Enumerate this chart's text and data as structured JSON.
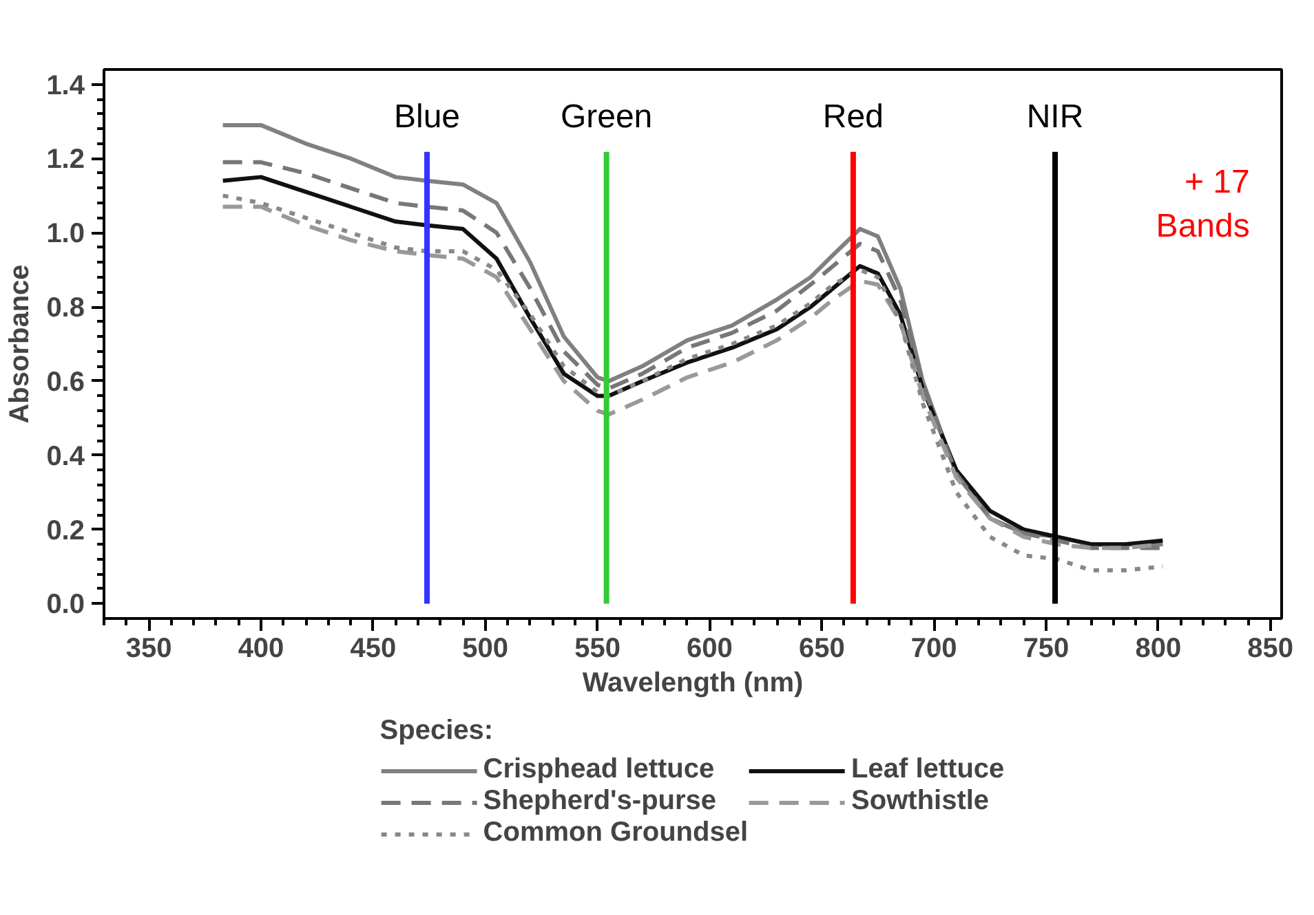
{
  "chart_data": {
    "type": "line",
    "xlabel": "Wavelength (nm)",
    "ylabel": "Absorbance",
    "legend_title": "Species:",
    "legend": "bottom",
    "grid": false,
    "xlim": [
      330,
      855
    ],
    "ylim": [
      -0.04,
      1.44
    ],
    "xticks": [
      350,
      400,
      450,
      500,
      550,
      600,
      650,
      700,
      750,
      800,
      850
    ],
    "yticks": [
      {
        "value": 0,
        "label": "0.0"
      },
      {
        "value": 0.2,
        "label": "0.2"
      },
      {
        "value": 0.4,
        "label": "0.4"
      },
      {
        "value": 0.6,
        "label": "0.6"
      },
      {
        "value": 0.8,
        "label": "0.8"
      },
      {
        "value": 1.0,
        "label": "1.0"
      },
      {
        "value": 1.2,
        "label": "1.2"
      },
      {
        "value": 1.4,
        "label": "1.4"
      }
    ],
    "x": [
      383,
      400,
      420,
      440,
      460,
      474,
      490,
      505,
      520,
      535,
      550,
      555,
      570,
      590,
      610,
      630,
      645,
      655,
      667,
      675,
      685,
      695,
      710,
      725,
      740,
      755,
      770,
      785,
      802
    ],
    "series": [
      {
        "name": "Crisphead lettuce",
        "color": "#808080",
        "line_style": "solid",
        "values": [
          1.29,
          1.29,
          1.24,
          1.2,
          1.15,
          1.14,
          1.13,
          1.08,
          0.92,
          0.72,
          0.61,
          0.6,
          0.64,
          0.71,
          0.75,
          0.82,
          0.88,
          0.94,
          1.01,
          0.99,
          0.85,
          0.6,
          0.35,
          0.23,
          0.19,
          0.18,
          0.16,
          0.16,
          0.16
        ]
      },
      {
        "name": "Leaf lettuce",
        "color": "#111111",
        "line_style": "solid",
        "values": [
          1.14,
          1.15,
          1.11,
          1.07,
          1.03,
          1.02,
          1.01,
          0.93,
          0.77,
          0.62,
          0.56,
          0.56,
          0.6,
          0.65,
          0.69,
          0.74,
          0.8,
          0.85,
          0.91,
          0.89,
          0.78,
          0.58,
          0.36,
          0.25,
          0.2,
          0.18,
          0.16,
          0.16,
          0.17
        ]
      },
      {
        "name": "Shepherd's-purse",
        "color": "#777777",
        "line_style": "dashed",
        "values": [
          1.19,
          1.19,
          1.16,
          1.12,
          1.08,
          1.07,
          1.06,
          1.0,
          0.85,
          0.68,
          0.59,
          0.58,
          0.62,
          0.69,
          0.73,
          0.79,
          0.86,
          0.91,
          0.97,
          0.95,
          0.82,
          0.59,
          0.35,
          0.23,
          0.19,
          0.17,
          0.15,
          0.15,
          0.15
        ]
      },
      {
        "name": "Sowthistle",
        "color": "#999999",
        "line_style": "dashed",
        "values": [
          1.07,
          1.07,
          1.02,
          0.98,
          0.95,
          0.94,
          0.93,
          0.88,
          0.74,
          0.6,
          0.52,
          0.51,
          0.55,
          0.61,
          0.65,
          0.71,
          0.77,
          0.82,
          0.87,
          0.86,
          0.76,
          0.56,
          0.34,
          0.23,
          0.18,
          0.16,
          0.15,
          0.15,
          0.16
        ]
      },
      {
        "name": "Common Groundsel",
        "color": "#888888",
        "line_style": "dotted",
        "values": [
          1.1,
          1.08,
          1.04,
          1.0,
          0.96,
          0.95,
          0.95,
          0.9,
          0.78,
          0.64,
          0.57,
          0.56,
          0.6,
          0.66,
          0.7,
          0.75,
          0.81,
          0.86,
          0.9,
          0.88,
          0.76,
          0.54,
          0.3,
          0.18,
          0.13,
          0.12,
          0.09,
          0.09,
          0.1
        ]
      }
    ],
    "ref_lines": [
      {
        "axis": "x",
        "value": 474,
        "label": "Blue",
        "color": "#3333ff"
      },
      {
        "axis": "x",
        "value": 554,
        "label": "Green",
        "color": "#33cc33"
      },
      {
        "axis": "x",
        "value": 664,
        "label": "Red",
        "color": "#ff0000"
      },
      {
        "axis": "x",
        "value": 754,
        "label": "NIR",
        "color": "#000000"
      }
    ],
    "annotations": [
      "+ 17\nBands"
    ]
  }
}
